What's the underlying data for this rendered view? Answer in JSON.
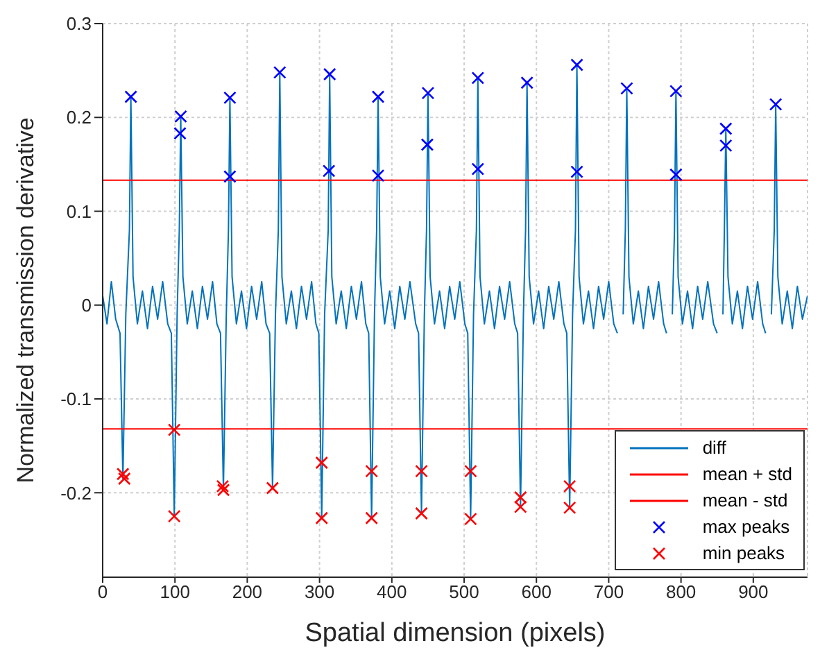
{
  "chart_data": {
    "type": "line",
    "xlabel": "Spatial dimension (pixels)",
    "ylabel": "Normalized transmission derivative",
    "xlim": [
      0,
      975
    ],
    "xticks": [
      0,
      100,
      200,
      300,
      400,
      500,
      600,
      700,
      800,
      900
    ],
    "ylim": [
      -0.29,
      0.3
    ],
    "yticks": [
      -0.2,
      -0.1,
      0,
      0.1,
      0.2,
      0.3
    ],
    "grid": true,
    "legend": "bottom right",
    "marker": "none",
    "series": [
      {
        "name": "diff",
        "color": "#0072bd",
        "x": [
          0,
          6,
          12,
          18,
          24,
          28,
          32,
          37,
          39,
          42,
          48,
          55,
          62,
          69,
          76,
          83,
          90,
          95,
          99,
          103,
          106,
          108,
          111,
          117,
          124,
          131,
          138,
          145,
          152,
          158,
          163,
          167,
          171,
          174,
          176,
          179,
          185,
          192,
          199,
          206,
          213,
          220,
          226,
          231,
          235,
          239,
          243,
          245,
          248,
          254,
          261,
          268,
          275,
          282,
          289,
          295,
          299,
          303,
          307,
          312,
          314,
          317,
          323,
          330,
          337,
          344,
          351,
          358,
          364,
          368,
          372,
          376,
          379,
          381,
          384,
          390,
          397,
          404,
          411,
          418,
          425,
          433,
          437,
          441,
          445,
          448,
          450,
          453,
          459,
          466,
          473,
          480,
          487,
          494,
          501,
          505,
          509,
          513,
          517,
          519,
          522,
          528,
          535,
          542,
          549,
          556,
          563,
          570,
          574,
          578,
          582,
          585,
          587,
          590,
          596,
          603,
          610,
          617,
          624,
          631,
          638,
          642,
          646,
          650,
          654,
          656,
          659,
          665,
          672,
          679,
          686,
          693,
          700,
          707,
          712,
          716,
          720,
          723,
          725,
          728,
          734,
          741,
          748,
          755,
          762,
          769,
          776,
          780,
          784,
          788,
          791,
          793,
          796,
          802,
          809,
          816,
          823,
          830,
          837,
          845,
          850,
          854,
          858,
          860,
          862,
          865,
          871,
          878,
          885,
          892,
          899,
          906,
          913,
          917,
          921,
          925,
          929,
          931,
          934,
          940,
          947,
          954,
          961,
          968,
          975
        ],
        "values": [
          0.01,
          -0.02,
          0.025,
          -0.015,
          -0.03,
          -0.185,
          -0.01,
          0.08,
          0.222,
          0.03,
          -0.02,
          0.015,
          -0.025,
          0.02,
          -0.015,
          0.025,
          -0.02,
          -0.03,
          -0.225,
          -0.01,
          0.08,
          0.201,
          0.03,
          -0.02,
          0.015,
          -0.025,
          0.02,
          -0.015,
          0.025,
          -0.02,
          -0.03,
          -0.197,
          -0.01,
          0.08,
          0.221,
          0.03,
          -0.02,
          0.015,
          -0.025,
          0.02,
          -0.015,
          0.025,
          -0.02,
          -0.03,
          -0.195,
          -0.01,
          0.08,
          0.248,
          0.03,
          -0.02,
          0.015,
          -0.025,
          0.02,
          -0.015,
          0.025,
          -0.02,
          -0.03,
          -0.227,
          -0.01,
          0.08,
          0.246,
          0.03,
          -0.02,
          0.015,
          -0.025,
          0.02,
          -0.015,
          0.025,
          -0.02,
          -0.03,
          -0.227,
          -0.01,
          0.08,
          0.222,
          0.03,
          -0.02,
          0.015,
          -0.025,
          0.02,
          -0.015,
          0.025,
          -0.02,
          -0.03,
          -0.222,
          -0.01,
          0.08,
          0.226,
          0.03,
          -0.02,
          0.015,
          -0.025,
          0.02,
          -0.015,
          0.025,
          -0.02,
          -0.03,
          -0.228,
          -0.01,
          0.08,
          0.242,
          0.03,
          -0.02,
          0.015,
          -0.025,
          0.02,
          -0.015,
          0.025,
          -0.02,
          -0.03,
          -0.215,
          -0.01,
          0.08,
          0.237,
          0.03,
          -0.02,
          0.015,
          -0.025,
          0.02,
          -0.015,
          0.025,
          -0.02,
          -0.03,
          -0.216,
          -0.01,
          0.08,
          0.256,
          0.03,
          -0.02,
          0.015,
          -0.025,
          0.02,
          -0.015,
          0.025,
          -0.02,
          -0.03,
          null,
          -0.01,
          0.08,
          0.231,
          0.03,
          -0.02,
          0.015,
          -0.025,
          0.02,
          -0.015,
          0.025,
          -0.02,
          -0.03,
          null,
          -0.01,
          0.08,
          0.228,
          0.03,
          -0.02,
          0.015,
          -0.025,
          0.02,
          -0.015,
          0.025,
          -0.02,
          -0.03,
          null,
          -0.01,
          0.08,
          0.188,
          0.03,
          -0.02,
          0.015,
          -0.025,
          0.02,
          -0.015,
          0.025,
          -0.02,
          -0.03,
          null,
          -0.01,
          0.08,
          0.214,
          0.03,
          -0.02,
          0.015,
          -0.025,
          0.02,
          -0.015,
          0.01
        ]
      },
      {
        "name": "mean + std",
        "type": "line",
        "color": "#ff0000",
        "x": [
          0,
          975
        ],
        "values": [
          0.133,
          0.133
        ]
      },
      {
        "name": "mean - std",
        "type": "line",
        "color": "#ff0000",
        "x": [
          0,
          975
        ],
        "values": [
          -0.132,
          -0.132
        ]
      },
      {
        "name": "max peaks",
        "type": "scatter",
        "marker": "cross",
        "color": "#0000ff",
        "x": [
          39,
          108,
          107,
          176,
          176,
          245,
          314,
          313,
          381,
          381,
          450,
          449,
          519,
          519,
          587,
          656,
          656,
          725,
          793,
          793,
          862,
          862,
          931
        ],
        "values": [
          0.222,
          0.201,
          0.183,
          0.221,
          0.137,
          0.248,
          0.246,
          0.143,
          0.222,
          0.138,
          0.226,
          0.171,
          0.242,
          0.145,
          0.237,
          0.256,
          0.142,
          0.231,
          0.228,
          0.139,
          0.188,
          0.17,
          0.214
        ]
      },
      {
        "name": "min peaks",
        "type": "scatter",
        "marker": "cross",
        "color": "#ff0000",
        "x": [
          28,
          30,
          99,
          99,
          166,
          167,
          235,
          303,
          303,
          372,
          372,
          441,
          441,
          509,
          509,
          578,
          578,
          646,
          646
        ],
        "values": [
          -0.18,
          -0.185,
          -0.133,
          -0.225,
          -0.193,
          -0.197,
          -0.195,
          -0.168,
          -0.227,
          -0.177,
          -0.227,
          -0.177,
          -0.222,
          -0.177,
          -0.228,
          -0.205,
          -0.215,
          -0.193,
          -0.216
        ]
      }
    ]
  }
}
